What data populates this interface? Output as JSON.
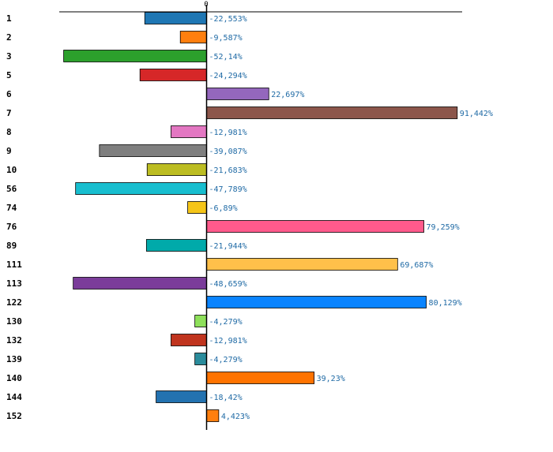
{
  "chart_data": {
    "type": "bar",
    "orientation": "horizontal",
    "zero_label": "0",
    "xlim": [
      -60,
      105
    ],
    "grid": false,
    "categories": [
      "1",
      "2",
      "3",
      "5",
      "6",
      "7",
      "8",
      "9",
      "10",
      "56",
      "74",
      "76",
      "89",
      "111",
      "113",
      "122",
      "130",
      "132",
      "139",
      "140",
      "144",
      "152"
    ],
    "values": [
      -22.553,
      -9.587,
      -52.14,
      -24.294,
      22.697,
      91.442,
      -12.981,
      -39.087,
      -21.683,
      -47.789,
      -6.89,
      79.259,
      -21.944,
      69.687,
      -48.659,
      80.129,
      -4.279,
      -12.981,
      -4.279,
      39.23,
      -18.42,
      4.423
    ],
    "value_labels": [
      "-22,553%",
      "-9,587%",
      "-52,14%",
      "-24,294%",
      "22,697%",
      "91,442%",
      "-12,981%",
      "-39,087%",
      "-21,683%",
      "-47,789%",
      "-6,89%",
      "79,259%",
      "-21,944%",
      "69,687%",
      "-48,659%",
      "80,129%",
      "-4,279%",
      "-12,981%",
      "-4,279%",
      "39,23%",
      "-18,42%",
      "4,423%"
    ],
    "colors": [
      "#1f77b4",
      "#ff7f0e",
      "#2ca02c",
      "#d62728",
      "#9467bd",
      "#8c564b",
      "#e377c2",
      "#7f7f7f",
      "#bcbd22",
      "#17becf",
      "#f5c518",
      "#ff5a8c",
      "#00aaaa",
      "#ffc04a",
      "#7b3c9a",
      "#0a84ff",
      "#8ee05a",
      "#c0341e",
      "#2a8c9c",
      "#ff7300",
      "#2372b0",
      "#ff7f0e"
    ]
  }
}
